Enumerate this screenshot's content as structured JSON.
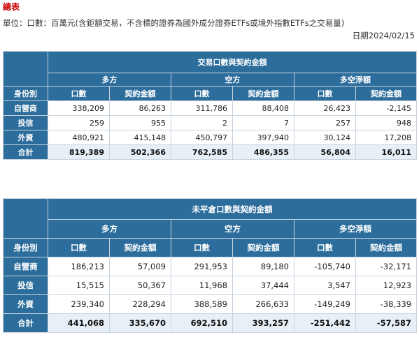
{
  "page": {
    "title": "總表",
    "unit_note": "單位：口數：百萬元(含鉅額交易，不含標的證券為國外成分證券ETFs或境外指數ETFs之交易量)",
    "date_note": "日期2024/02/15"
  },
  "table1": {
    "title": "交易口數與契約金額",
    "groups": [
      "多方",
      "空方",
      "多空淨額"
    ],
    "columns": [
      "身份別",
      "口數",
      "契約金額",
      "口數",
      "契約金額",
      "口數",
      "契約金額"
    ],
    "rows": [
      {
        "label": "自營商",
        "values": [
          "338,209",
          "86,263",
          "311,786",
          "88,408",
          "26,423",
          "-2,145"
        ]
      },
      {
        "label": "投信",
        "values": [
          "259",
          "955",
          "2",
          "7",
          "257",
          "948"
        ]
      },
      {
        "label": "外資",
        "values": [
          "480,921",
          "415,148",
          "450,797",
          "397,940",
          "30,124",
          "17,208"
        ]
      },
      {
        "label": "合計",
        "values": [
          "819,389",
          "502,366",
          "762,585",
          "486,355",
          "56,804",
          "16,011"
        ]
      }
    ]
  },
  "table2": {
    "title": "未平倉口數與契約金額",
    "groups": [
      "多方",
      "空方",
      "多空淨額"
    ],
    "columns": [
      "身份別",
      "口數",
      "契約金額",
      "口數",
      "契約金額",
      "口數",
      "契約金額"
    ],
    "rows": [
      {
        "label": "自營商",
        "values": [
          "186,213",
          "57,009",
          "291,953",
          "89,180",
          "-105,740",
          "-32,171"
        ]
      },
      {
        "label": "投信",
        "values": [
          "15,515",
          "50,367",
          "11,968",
          "37,444",
          "3,547",
          "12,923"
        ]
      },
      {
        "label": "外資",
        "values": [
          "239,340",
          "228,294",
          "388,589",
          "266,633",
          "-149,249",
          "-38,339"
        ]
      },
      {
        "label": "合計",
        "values": [
          "441,068",
          "335,670",
          "692,510",
          "393,257",
          "-251,442",
          "-57,587"
        ]
      }
    ]
  },
  "colors": {
    "header_bg": "#2c6d9c",
    "header_text": "#ffffff",
    "title_red": "#cc0000",
    "total_row_bg": "#e8f0f7",
    "border": "#c7d3df"
  }
}
